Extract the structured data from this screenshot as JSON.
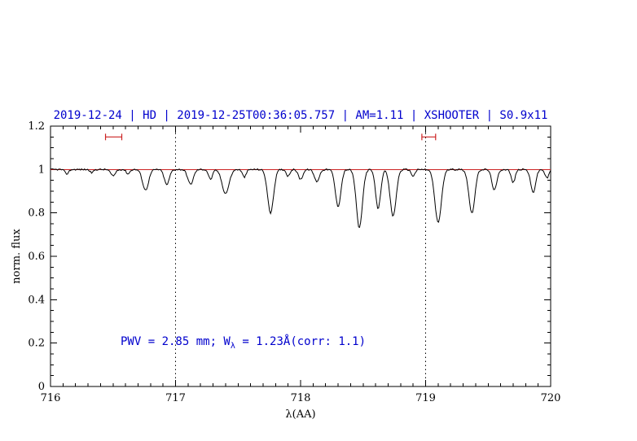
{
  "title": "2019-12-24 | HD | 2019-12-25T00:36:05.757 | AM=1.11 | XSHOOTER | S0.9x11",
  "annotation": {
    "pre": "PWV = 2.85 mm; W",
    "sub": "λ",
    "post": " = 1.23Å(corr: 1.1)"
  },
  "colors": {
    "accent_blue": "#0000cd",
    "red": "#cc2222",
    "black": "#000000"
  },
  "chart_data": {
    "type": "line",
    "title": "2019-12-24 | HD | 2019-12-25T00:36:05.757 | AM=1.11 | XSHOOTER | S0.9x11",
    "xlabel": "λ(AA)",
    "ylabel": "norm. flux",
    "xlim": [
      716,
      720
    ],
    "ylim": [
      0,
      1.2
    ],
    "x_ticks": [
      716,
      717,
      718,
      719,
      720
    ],
    "x_tick_labels": [
      "716",
      "717",
      "718",
      "719",
      "720"
    ],
    "y_ticks": [
      0,
      0.2,
      0.4,
      0.6,
      0.8,
      1,
      1.2
    ],
    "y_tick_labels": [
      "0",
      "0.2",
      "0.4",
      "0.6",
      "0.8",
      "1",
      "1.2"
    ],
    "x_minor_step": 0.1,
    "y_minor_step": 0.05,
    "grid": false,
    "continuum_level": 1.0,
    "noise_amplitude": 0.0035,
    "reference_lines": {
      "horizontal_red": [
        1.0
      ],
      "vertical_dotted": [
        717,
        719
      ]
    },
    "markers": [
      {
        "x_start": 716.44,
        "x_end": 716.57,
        "y": 1.15
      },
      {
        "x_start": 718.97,
        "x_end": 719.08,
        "y": 1.15
      }
    ],
    "absorption_lines": [
      {
        "center": 716.13,
        "depth": 0.02,
        "sigma": 0.015
      },
      {
        "center": 716.33,
        "depth": 0.015,
        "sigma": 0.013
      },
      {
        "center": 716.5,
        "depth": 0.03,
        "sigma": 0.018
      },
      {
        "center": 716.62,
        "depth": 0.02,
        "sigma": 0.014
      },
      {
        "center": 716.76,
        "depth": 0.095,
        "sigma": 0.024
      },
      {
        "center": 716.93,
        "depth": 0.07,
        "sigma": 0.02
      },
      {
        "center": 717.12,
        "depth": 0.068,
        "sigma": 0.022
      },
      {
        "center": 717.28,
        "depth": 0.045,
        "sigma": 0.016
      },
      {
        "center": 717.4,
        "depth": 0.11,
        "sigma": 0.028
      },
      {
        "center": 717.55,
        "depth": 0.035,
        "sigma": 0.015
      },
      {
        "center": 717.76,
        "depth": 0.2,
        "sigma": 0.024
      },
      {
        "center": 717.9,
        "depth": 0.03,
        "sigma": 0.014
      },
      {
        "center": 718.0,
        "depth": 0.045,
        "sigma": 0.018
      },
      {
        "center": 718.13,
        "depth": 0.055,
        "sigma": 0.02
      },
      {
        "center": 718.3,
        "depth": 0.17,
        "sigma": 0.022
      },
      {
        "center": 718.47,
        "depth": 0.27,
        "sigma": 0.024
      },
      {
        "center": 718.62,
        "depth": 0.18,
        "sigma": 0.02
      },
      {
        "center": 718.74,
        "depth": 0.215,
        "sigma": 0.024
      },
      {
        "center": 718.9,
        "depth": 0.03,
        "sigma": 0.015
      },
      {
        "center": 719.1,
        "depth": 0.245,
        "sigma": 0.026
      },
      {
        "center": 719.37,
        "depth": 0.2,
        "sigma": 0.024
      },
      {
        "center": 719.55,
        "depth": 0.095,
        "sigma": 0.02
      },
      {
        "center": 719.7,
        "depth": 0.06,
        "sigma": 0.016
      },
      {
        "center": 719.86,
        "depth": 0.105,
        "sigma": 0.02
      },
      {
        "center": 719.97,
        "depth": 0.04,
        "sigma": 0.015
      }
    ]
  }
}
